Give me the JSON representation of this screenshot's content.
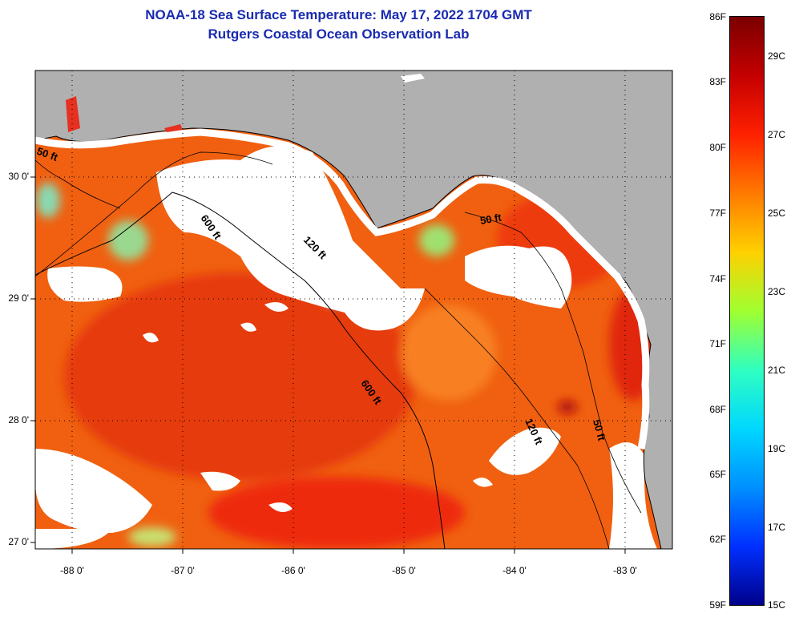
{
  "title": {
    "line1": "NOAA-18 Sea Surface Temperature:  May 17, 2022 1704 GMT",
    "line2": "Rutgers Coastal Ocean Observation Lab"
  },
  "axes": {
    "lat_labels": [
      "30 0'",
      "29 0'",
      "28 0'",
      "27 0'"
    ],
    "lon_labels": [
      "-88 0'",
      "-87 0'",
      "-86 0'",
      "-85 0'",
      "-84 0'",
      "-83 0'"
    ]
  },
  "contours": {
    "c600a": "600 ft",
    "c600b": "600 ft",
    "c120a": "120 ft",
    "c120b": "120 ft",
    "c50a": "50 ft",
    "c50b": "50 ft",
    "c50c": "50 ft"
  },
  "colorbar": {
    "fahrenheit": [
      "86F",
      "83F",
      "80F",
      "77F",
      "74F",
      "71F",
      "68F",
      "65F",
      "62F",
      "59F"
    ],
    "celsius": [
      "29C",
      "27C",
      "25C",
      "23C",
      "21C",
      "19C",
      "17C",
      "15C"
    ],
    "gradient_stops": [
      "#7a0000",
      "#c40000",
      "#ff2000",
      "#ff7a00",
      "#ffd000",
      "#a0ff30",
      "#30ffc0",
      "#00d8ff",
      "#0090ff",
      "#0030ff",
      "#00008a"
    ]
  },
  "colors": {
    "land": "#b0b0b0",
    "cloud": "#ffffff",
    "sst_main": "#f06010",
    "sst_warm": "#e63a10",
    "sst_hot": "#b01010",
    "sst_cool": "#7ad8a0",
    "title": "#1a2bb0"
  }
}
